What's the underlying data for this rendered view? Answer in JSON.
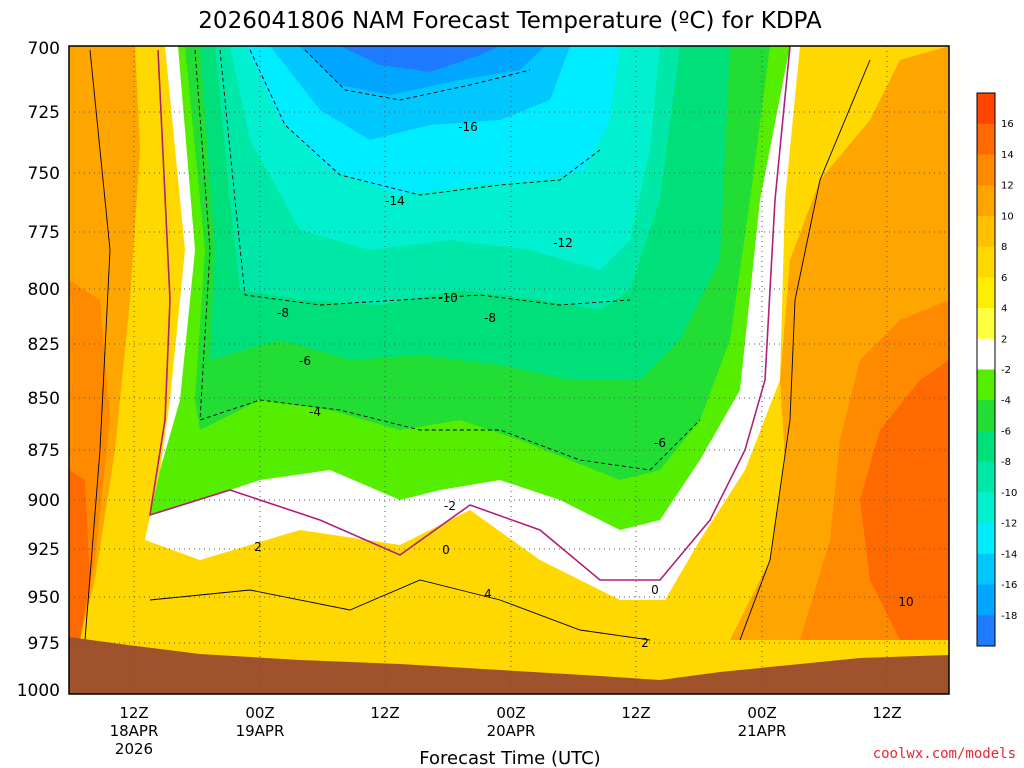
{
  "chart_data": {
    "type": "heatmap",
    "title": "2026041806 NAM Forecast Temperature (ºC) for KDPA",
    "xlabel": "Forecast Time (UTC)",
    "ylabel": "",
    "credit": "coolwx.com/models",
    "x_ticks": [
      {
        "hour": 6,
        "l1": "12Z",
        "l2": "18APR",
        "l3": "2026"
      },
      {
        "hour": 18,
        "l1": "00Z",
        "l2": "19APR",
        "l3": ""
      },
      {
        "hour": 30,
        "l1": "12Z",
        "l2": "",
        "l3": ""
      },
      {
        "hour": 42,
        "l1": "00Z",
        "l2": "20APR",
        "l3": ""
      },
      {
        "hour": 54,
        "l1": "12Z",
        "l2": "",
        "l3": ""
      },
      {
        "hour": 66,
        "l1": "00Z",
        "l2": "21APR",
        "l3": ""
      },
      {
        "hour": 78,
        "l1": "12Z",
        "l2": "",
        "l3": ""
      }
    ],
    "x_range": [
      0,
      84
    ],
    "y_ticks": [
      "700",
      "725",
      "750",
      "775",
      "800",
      "825",
      "850",
      "875",
      "900",
      "925",
      "950",
      "975",
      "1000"
    ],
    "y_range": [
      1000,
      700
    ],
    "grid": "dotted",
    "colorbar": {
      "position": "right",
      "labels": [
        "16",
        "14",
        "12",
        "10",
        "8",
        "6",
        "4",
        "2",
        "-2",
        "-4",
        "-6",
        "-8",
        "-10",
        "-12",
        "-14",
        "-16",
        "-18"
      ],
      "colors": [
        "#ff4400",
        "#ff6a00",
        "#ff8a00",
        "#ffa500",
        "#ffc000",
        "#ffd800",
        "#ffee00",
        "#ffff40",
        "#ffffff",
        "#55ee00",
        "#22dd33",
        "#00e07a",
        "#00e8a8",
        "#00f0d0",
        "#00ecff",
        "#00c8ff",
        "#00a6ff",
        "#1e7bff"
      ]
    },
    "contour_labels": [
      {
        "text": "-16",
        "hour": 39.5,
        "level": 727
      },
      {
        "text": "-14",
        "hour": 31,
        "level": 761
      },
      {
        "text": "-12",
        "hour": 47.5,
        "level": 779
      },
      {
        "text": "-10",
        "hour": 37.5,
        "level": 802
      },
      {
        "text": "-8",
        "hour": 21.5,
        "level": 811
      },
      {
        "text": "-8",
        "hour": 42,
        "level": 813
      },
      {
        "text": "-6",
        "hour": 23,
        "level": 834
      },
      {
        "text": "-4",
        "hour": 24,
        "level": 857
      },
      {
        "text": "-6",
        "hour": 56,
        "level": 870
      },
      {
        "text": "-2",
        "hour": 36.5,
        "level": 902
      },
      {
        "text": "2",
        "hour": 18,
        "level": 923
      },
      {
        "text": "0",
        "hour": 36,
        "level": 924
      },
      {
        "text": "4",
        "hour": 40.5,
        "level": 947
      },
      {
        "text": "0",
        "hour": 55,
        "level": 943
      },
      {
        "text": "2",
        "hour": 54,
        "level": 973
      },
      {
        "text": "10",
        "hour": 80,
        "level": 952
      }
    ]
  }
}
